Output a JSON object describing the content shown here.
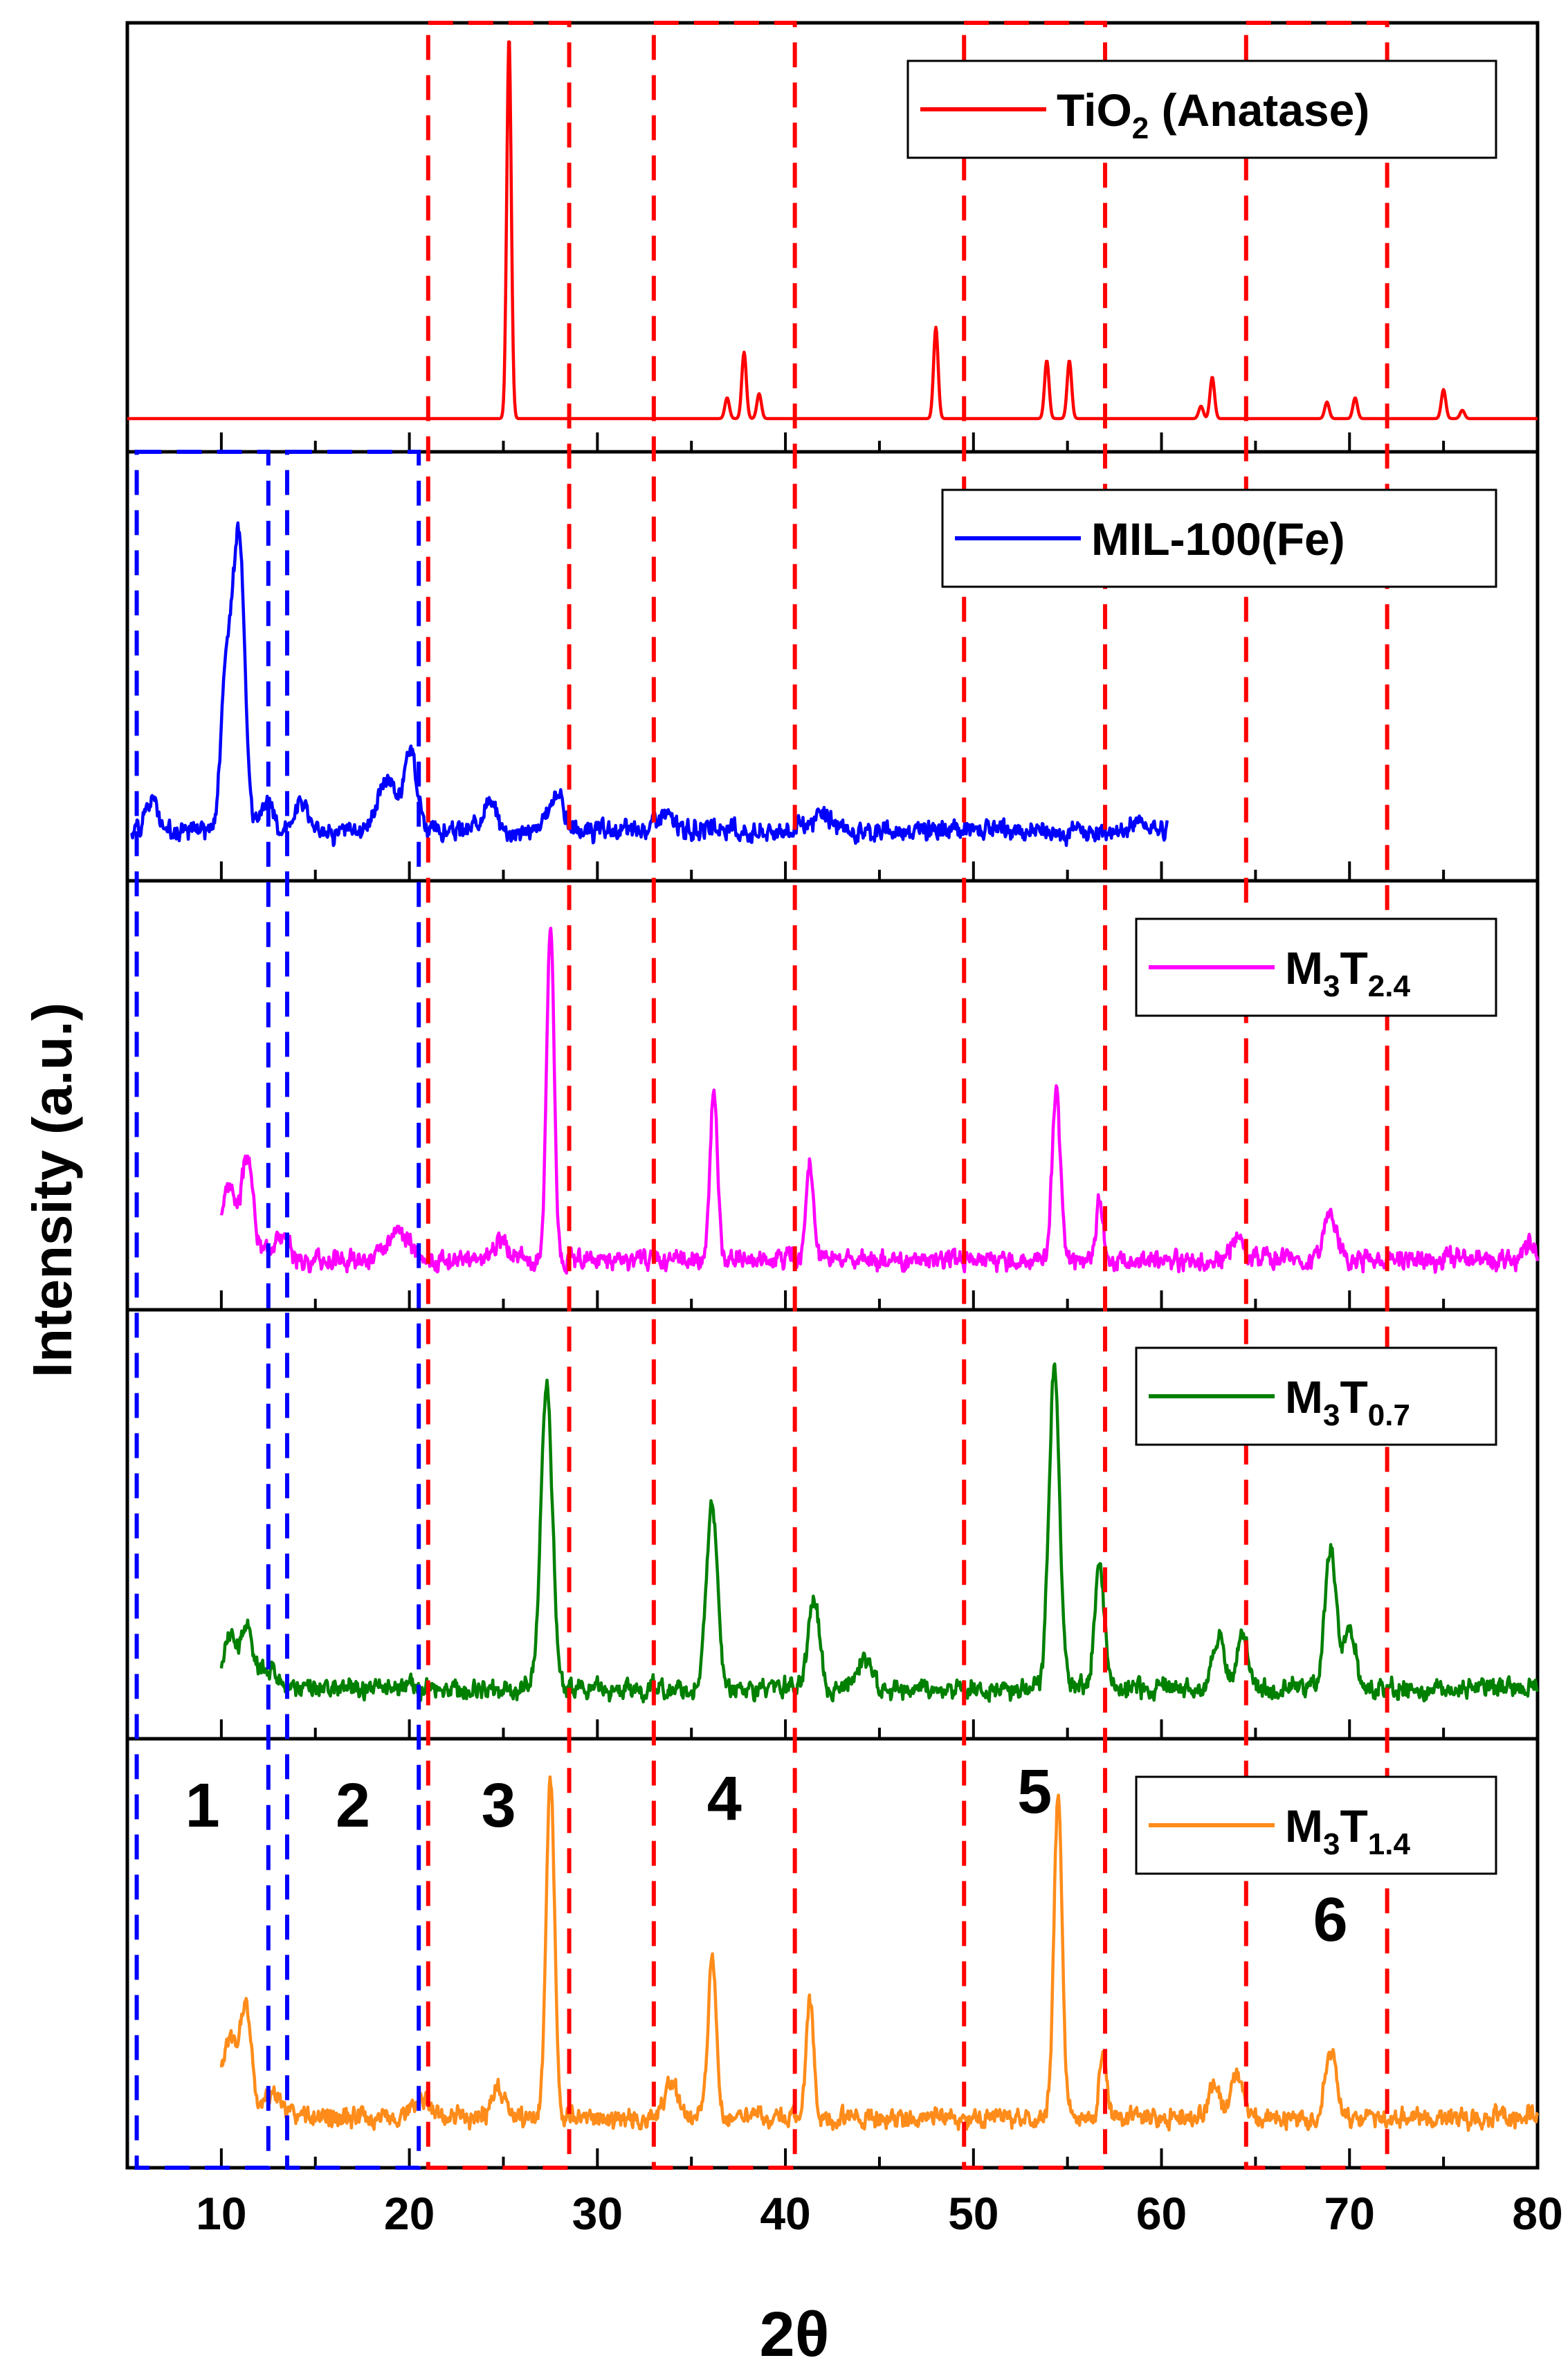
{
  "chart_data": {
    "type": "line",
    "title": "",
    "xlabel": "2θ",
    "ylabel": "Intensity (a.u.)",
    "xlim": [
      5,
      80
    ],
    "xticks": [
      10,
      20,
      30,
      40,
      50,
      60,
      70,
      80
    ],
    "xtick_labels": [
      "10",
      "20",
      "30",
      "40",
      "50",
      "60",
      "70",
      "80"
    ],
    "stacked_panels": true,
    "series": [
      {
        "name": "TiO2 (Anatase)",
        "legend": {
          "base": "TiO",
          "sub": "2",
          "tail": " (Anatase)"
        },
        "color": "#ff0000",
        "x_range": [
          5,
          80
        ],
        "baseline": 0.08,
        "noise": 0,
        "seed": 1,
        "peaks": [
          {
            "x": 25.3,
            "h": 0.92,
            "w": 0.12
          },
          {
            "x": 36.9,
            "h": 0.05,
            "w": 0.12
          },
          {
            "x": 37.8,
            "h": 0.16,
            "w": 0.12
          },
          {
            "x": 38.6,
            "h": 0.06,
            "w": 0.12
          },
          {
            "x": 48.0,
            "h": 0.22,
            "w": 0.12
          },
          {
            "x": 53.9,
            "h": 0.14,
            "w": 0.12
          },
          {
            "x": 55.1,
            "h": 0.14,
            "w": 0.12
          },
          {
            "x": 62.1,
            "h": 0.03,
            "w": 0.12
          },
          {
            "x": 62.7,
            "h": 0.1,
            "w": 0.12
          },
          {
            "x": 68.8,
            "h": 0.04,
            "w": 0.12
          },
          {
            "x": 70.3,
            "h": 0.05,
            "w": 0.12
          },
          {
            "x": 75.0,
            "h": 0.07,
            "w": 0.12
          },
          {
            "x": 76.0,
            "h": 0.02,
            "w": 0.12
          }
        ]
      },
      {
        "name": "MIL-100(Fe)",
        "legend": {
          "base": "MIL-100(Fe)",
          "sub": "",
          "tail": ""
        },
        "color": "#0000ff",
        "x_range": [
          5.2,
          60.3
        ],
        "baseline": 0.12,
        "noise": 0.035,
        "seed": 2,
        "peaks": [
          {
            "x": 6.3,
            "h": 0.08,
            "w": 0.35
          },
          {
            "x": 10.3,
            "h": 0.4,
            "w": 0.3
          },
          {
            "x": 10.95,
            "h": 0.68,
            "w": 0.3
          },
          {
            "x": 12.4,
            "h": 0.07,
            "w": 0.3
          },
          {
            "x": 14.2,
            "h": 0.07,
            "w": 0.4
          },
          {
            "x": 18.8,
            "h": 0.13,
            "w": 0.5
          },
          {
            "x": 20.1,
            "h": 0.19,
            "w": 0.35
          },
          {
            "x": 24.2,
            "h": 0.07,
            "w": 0.4
          },
          {
            "x": 27.8,
            "h": 0.09,
            "w": 0.4
          },
          {
            "x": 33.5,
            "h": 0.04,
            "w": 0.5
          },
          {
            "x": 42.0,
            "h": 0.04,
            "w": 0.5
          },
          {
            "x": 59.0,
            "h": 0.03,
            "w": 0.4
          }
        ]
      },
      {
        "name": "M3T2.4",
        "legend": {
          "base": "M",
          "sub": "3",
          "base2": "T",
          "sub2": "2.4"
        },
        "color": "#ff00ff",
        "x_range": [
          10.0,
          80.0
        ],
        "baseline": 0.12,
        "noise": 0.035,
        "seed": 3,
        "peaks": [
          {
            "x": 10.4,
            "h": 0.18,
            "w": 0.4
          },
          {
            "x": 11.4,
            "h": 0.24,
            "w": 0.3
          },
          {
            "x": 13.0,
            "h": 0.06,
            "w": 0.5
          },
          {
            "x": 19.5,
            "h": 0.06,
            "w": 0.6
          },
          {
            "x": 24.8,
            "h": 0.05,
            "w": 0.4
          },
          {
            "x": 27.5,
            "h": 0.82,
            "w": 0.2
          },
          {
            "x": 36.2,
            "h": 0.4,
            "w": 0.2
          },
          {
            "x": 41.3,
            "h": 0.22,
            "w": 0.2
          },
          {
            "x": 54.4,
            "h": 0.4,
            "w": 0.22
          },
          {
            "x": 56.7,
            "h": 0.14,
            "w": 0.2
          },
          {
            "x": 64.0,
            "h": 0.05,
            "w": 0.3
          },
          {
            "x": 69.0,
            "h": 0.12,
            "w": 0.3
          },
          {
            "x": 79.5,
            "h": 0.04,
            "w": 0.3
          }
        ]
      },
      {
        "name": "M3T0.7",
        "legend": {
          "base": "M",
          "sub": "3",
          "base2": "T",
          "sub2": "0.7"
        },
        "color": "#008000",
        "x_range": [
          10.0,
          80.0
        ],
        "baseline": 0.12,
        "noise": 0.035,
        "seed": 4,
        "peaks": [
          {
            "x": 10.5,
            "h": 0.13,
            "w": 0.4
          },
          {
            "x": 11.4,
            "h": 0.14,
            "w": 0.3
          },
          {
            "x": 12.5,
            "h": 0.05,
            "w": 0.5
          },
          {
            "x": 27.3,
            "h": 0.75,
            "w": 0.3
          },
          {
            "x": 36.1,
            "h": 0.44,
            "w": 0.3
          },
          {
            "x": 41.5,
            "h": 0.22,
            "w": 0.3
          },
          {
            "x": 44.2,
            "h": 0.07,
            "w": 0.4
          },
          {
            "x": 54.3,
            "h": 0.78,
            "w": 0.28
          },
          {
            "x": 56.7,
            "h": 0.3,
            "w": 0.25
          },
          {
            "x": 63.0,
            "h": 0.13,
            "w": 0.3
          },
          {
            "x": 64.3,
            "h": 0.14,
            "w": 0.3
          },
          {
            "x": 69.0,
            "h": 0.34,
            "w": 0.3
          },
          {
            "x": 70.0,
            "h": 0.15,
            "w": 0.3
          }
        ]
      },
      {
        "name": "M3T1.4",
        "legend": {
          "base": "M",
          "sub": "3",
          "base2": "T",
          "sub2": "1.4"
        },
        "color": "#ff8c1a",
        "x_range": [
          10.0,
          80.0
        ],
        "baseline": 0.12,
        "noise": 0.035,
        "seed": 5,
        "peaks": [
          {
            "x": 10.4,
            "h": 0.18,
            "w": 0.4
          },
          {
            "x": 11.3,
            "h": 0.26,
            "w": 0.3
          },
          {
            "x": 12.7,
            "h": 0.06,
            "w": 0.5
          },
          {
            "x": 20.7,
            "h": 0.05,
            "w": 0.5
          },
          {
            "x": 24.8,
            "h": 0.07,
            "w": 0.4
          },
          {
            "x": 27.5,
            "h": 0.82,
            "w": 0.22
          },
          {
            "x": 33.9,
            "h": 0.08,
            "w": 0.4
          },
          {
            "x": 36.1,
            "h": 0.4,
            "w": 0.22
          },
          {
            "x": 41.3,
            "h": 0.28,
            "w": 0.2
          },
          {
            "x": 54.5,
            "h": 0.78,
            "w": 0.22
          },
          {
            "x": 56.9,
            "h": 0.15,
            "w": 0.2
          },
          {
            "x": 62.8,
            "h": 0.08,
            "w": 0.3
          },
          {
            "x": 64.0,
            "h": 0.1,
            "w": 0.3
          },
          {
            "x": 69.0,
            "h": 0.16,
            "w": 0.3
          }
        ]
      }
    ],
    "regions": [
      {
        "label": "1",
        "x0": 5.5,
        "x1": 12.5,
        "color": "#0000ff"
      },
      {
        "label": "2",
        "x0": 13.5,
        "x1": 20.5,
        "color": "#0000ff"
      },
      {
        "label": "3",
        "x0": 21.0,
        "x1": 28.5,
        "color": "#ff0000"
      },
      {
        "label": "4",
        "x0": 33.0,
        "x1": 40.5,
        "color": "#ff0000"
      },
      {
        "label": "5",
        "x0": 49.5,
        "x1": 57.0,
        "color": "#ff0000"
      },
      {
        "label": "6",
        "x0": 64.5,
        "x1": 72.0,
        "color": "#ff0000"
      }
    ]
  }
}
